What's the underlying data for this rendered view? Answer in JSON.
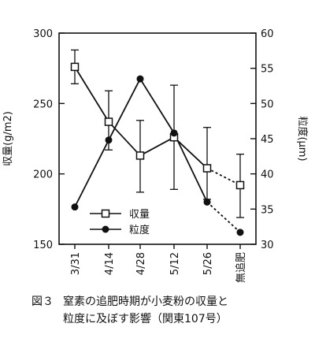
{
  "chart_data": {
    "type": "line",
    "categories": [
      "3/31",
      "4/14",
      "4/28",
      "5/12",
      "5/26",
      "無追肥"
    ],
    "y_left": {
      "label": "収量(g/m2)",
      "ticks": [
        150,
        200,
        250,
        300
      ],
      "range": [
        150,
        300
      ]
    },
    "y_right": {
      "label": "粒度(μm)",
      "ticks": [
        30,
        35,
        40,
        45,
        50,
        55,
        60
      ],
      "range": [
        30,
        60
      ]
    },
    "series": [
      {
        "name": "収量",
        "axis": "left",
        "marker": "open-square",
        "values": [
          276,
          237,
          213,
          226,
          204,
          192
        ],
        "error_low": [
          264,
          217,
          187,
          189,
          182,
          169
        ],
        "error_high": [
          288,
          259,
          238,
          263,
          233,
          214
        ],
        "dashed_segments": [
          [
            4,
            5
          ]
        ]
      },
      {
        "name": "粒度",
        "axis": "right",
        "marker": "filled-circle",
        "values": [
          35.3,
          44.8,
          53.5,
          45.8,
          36.0,
          31.7
        ],
        "dashed_segments": [
          [
            4,
            5
          ]
        ]
      }
    ],
    "legend_position": "lower-left"
  },
  "caption": {
    "fig_label": "図３",
    "line1": "窒素の追肥時期が小麦粉の収量と",
    "line2": "粒度に及ぼす影響（関東107号）"
  }
}
